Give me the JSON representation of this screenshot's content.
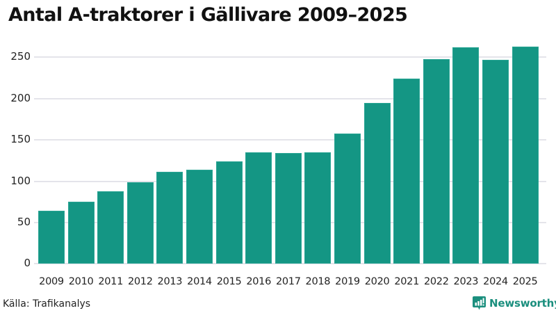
{
  "header": {
    "title": "Antal A-traktorer i Gällivare 2009–2025"
  },
  "footer": {
    "source": "Källa: Trafikanalys",
    "brand": "Newsworthy",
    "brand_icon": "newsworthy-logo-icon"
  },
  "colors": {
    "bar": "#149684",
    "gridline": "#e4e4ea",
    "brand": "#1b8f7e"
  },
  "chart_data": {
    "type": "bar",
    "title": "Antal A-traktorer i Gällivare 2009–2025",
    "xlabel": "",
    "ylabel": "",
    "categories": [
      "2009",
      "2010",
      "2011",
      "2012",
      "2013",
      "2014",
      "2015",
      "2016",
      "2017",
      "2018",
      "2019",
      "2020",
      "2021",
      "2022",
      "2023",
      "2024",
      "2025"
    ],
    "values": [
      64,
      75,
      88,
      99,
      111,
      114,
      124,
      135,
      134,
      135,
      158,
      195,
      224,
      248,
      262,
      247,
      263
    ],
    "ylim": [
      0,
      270
    ],
    "yticks": [
      "0",
      "50",
      "100",
      "150",
      "200",
      "250"
    ],
    "ytick_values": [
      0,
      50,
      100,
      150,
      200,
      250
    ],
    "grid": true,
    "legend": null,
    "source": "Källa: Trafikanalys"
  }
}
